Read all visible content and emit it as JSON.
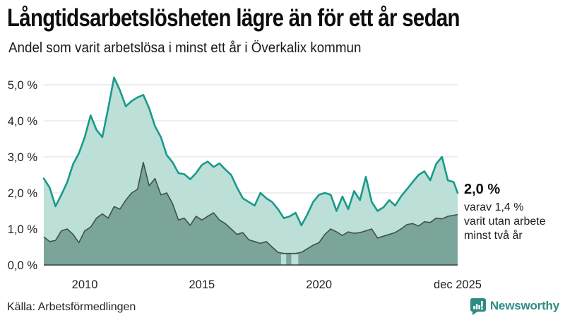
{
  "colors": {
    "accent_teal": "#199a8b",
    "fill_light": "#bcdfd8",
    "fill_dark": "#7ba49b",
    "line_dark": "#40514e",
    "grid": "#e3e3e7",
    "axis": "#37413f",
    "brand_teal": "#2e8c83"
  },
  "footer": {
    "source": "Källa: Arbetsförmedlingen",
    "brand": "Newsworthy"
  },
  "chart_data": {
    "type": "area",
    "title": "Långtidsarbetslösheten lägre än för ett år sedan",
    "subtitle": "Andel som varit arbetslösa i minst ett år i Överkalix kommun",
    "xlim": [
      2008.25,
      2025.92
    ],
    "ylim": [
      0,
      5.4
    ],
    "x_ticks": [
      {
        "value": 2010,
        "label": "2010"
      },
      {
        "value": 2015,
        "label": "2015"
      },
      {
        "value": 2020,
        "label": "2020"
      },
      {
        "value": 2025.92,
        "label": "dec 2025"
      }
    ],
    "y_ticks": [
      {
        "value": 0,
        "label": "0,0 %"
      },
      {
        "value": 1,
        "label": "1,0 %"
      },
      {
        "value": 2,
        "label": "2,0 %"
      },
      {
        "value": 3,
        "label": "3,0 %"
      },
      {
        "value": 4,
        "label": "4,0 %"
      },
      {
        "value": 5,
        "label": "5,0 %"
      }
    ],
    "annotation": {
      "value": "2,0 %",
      "detail1": "varav 1,4 %",
      "detail2": "varit utan arbete",
      "detail3": "minst två år"
    },
    "x": [
      2008.25,
      2008.5,
      2008.75,
      2009.0,
      2009.25,
      2009.5,
      2009.75,
      2010.0,
      2010.25,
      2010.5,
      2010.75,
      2011.0,
      2011.25,
      2011.5,
      2011.75,
      2012.0,
      2012.25,
      2012.5,
      2012.75,
      2013.0,
      2013.25,
      2013.5,
      2013.75,
      2014.0,
      2014.25,
      2014.5,
      2014.75,
      2015.0,
      2015.25,
      2015.5,
      2015.75,
      2016.0,
      2016.25,
      2016.5,
      2016.75,
      2017.0,
      2017.25,
      2017.5,
      2017.75,
      2018.0,
      2018.25,
      2018.5,
      2018.75,
      2019.0,
      2019.25,
      2019.5,
      2019.75,
      2020.0,
      2020.25,
      2020.5,
      2020.75,
      2021.0,
      2021.25,
      2021.5,
      2021.75,
      2022.0,
      2022.25,
      2022.5,
      2022.75,
      2023.0,
      2023.25,
      2023.5,
      2023.75,
      2024.0,
      2024.25,
      2024.5,
      2024.75,
      2025.0,
      2025.25,
      2025.5,
      2025.75,
      2025.92
    ],
    "series": [
      {
        "name": "Arbetslösa minst ett år",
        "color": "#199a8b",
        "fill": "#bcdfd8",
        "values": [
          2.4,
          2.15,
          1.63,
          1.95,
          2.3,
          2.8,
          3.1,
          3.55,
          4.15,
          3.75,
          3.55,
          4.35,
          5.2,
          4.85,
          4.4,
          4.55,
          4.65,
          4.72,
          4.35,
          3.85,
          3.55,
          3.05,
          2.85,
          2.55,
          2.52,
          2.38,
          2.55,
          2.78,
          2.87,
          2.72,
          2.82,
          2.65,
          2.5,
          2.15,
          1.85,
          1.75,
          1.65,
          2.0,
          1.85,
          1.75,
          1.55,
          1.3,
          1.35,
          1.45,
          1.1,
          1.4,
          1.75,
          1.95,
          2.0,
          1.95,
          1.5,
          1.9,
          1.55,
          2.05,
          1.8,
          2.45,
          1.75,
          1.5,
          1.6,
          1.8,
          1.65,
          1.9,
          2.1,
          2.3,
          2.5,
          2.6,
          2.35,
          2.8,
          3.0,
          2.35,
          2.3,
          2.0
        ]
      },
      {
        "name": "Arbetslösa minst två år",
        "color": "#40514e",
        "fill": "#7ba49b",
        "values": [
          0.78,
          0.65,
          0.68,
          0.95,
          1.0,
          0.85,
          0.62,
          0.95,
          1.05,
          1.3,
          1.42,
          1.3,
          1.62,
          1.55,
          1.8,
          2.0,
          2.1,
          2.85,
          2.2,
          2.4,
          1.95,
          2.0,
          1.7,
          1.25,
          1.3,
          1.1,
          1.35,
          1.25,
          1.35,
          1.45,
          1.25,
          1.15,
          1.0,
          0.85,
          0.9,
          0.7,
          0.65,
          0.6,
          0.65,
          0.5,
          0.35,
          0.32,
          0.32,
          0.32,
          0.35,
          0.45,
          0.55,
          0.62,
          0.85,
          1.0,
          0.92,
          0.82,
          0.92,
          0.88,
          0.9,
          0.95,
          1.0,
          0.75,
          0.8,
          0.85,
          0.9,
          1.0,
          1.12,
          1.15,
          1.08,
          1.2,
          1.18,
          1.3,
          1.28,
          1.35,
          1.38,
          1.4
        ]
      }
    ],
    "dark_fill_gaps": [
      {
        "from": 2018.38,
        "to": 2018.6,
        "top": 0.3
      },
      {
        "from": 2018.82,
        "to": 2019.12,
        "top": 0.3
      }
    ]
  }
}
